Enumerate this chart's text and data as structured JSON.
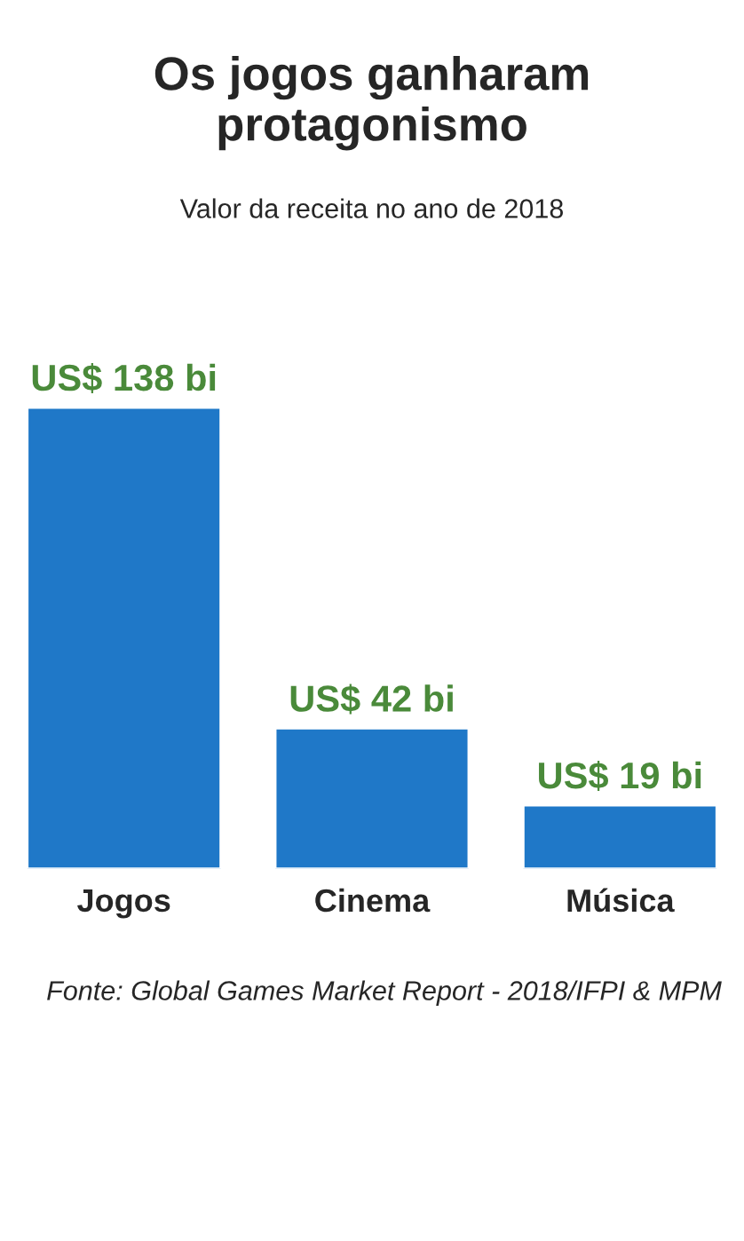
{
  "chart_data": {
    "type": "bar",
    "title": "Os jogos ganharam protagonismo",
    "subtitle": "Valor da receita no ano de 2018",
    "categories": [
      "Jogos",
      "Cinema",
      "Música"
    ],
    "values": [
      138,
      42,
      19
    ],
    "value_labels": [
      "US$ 138 bi",
      "US$ 42 bi",
      "US$ 19 bi"
    ],
    "color": "#1f78c8",
    "annotations": [
      "Fonte: Global Games Market Report - 2018/IFPI & MPM"
    ]
  }
}
